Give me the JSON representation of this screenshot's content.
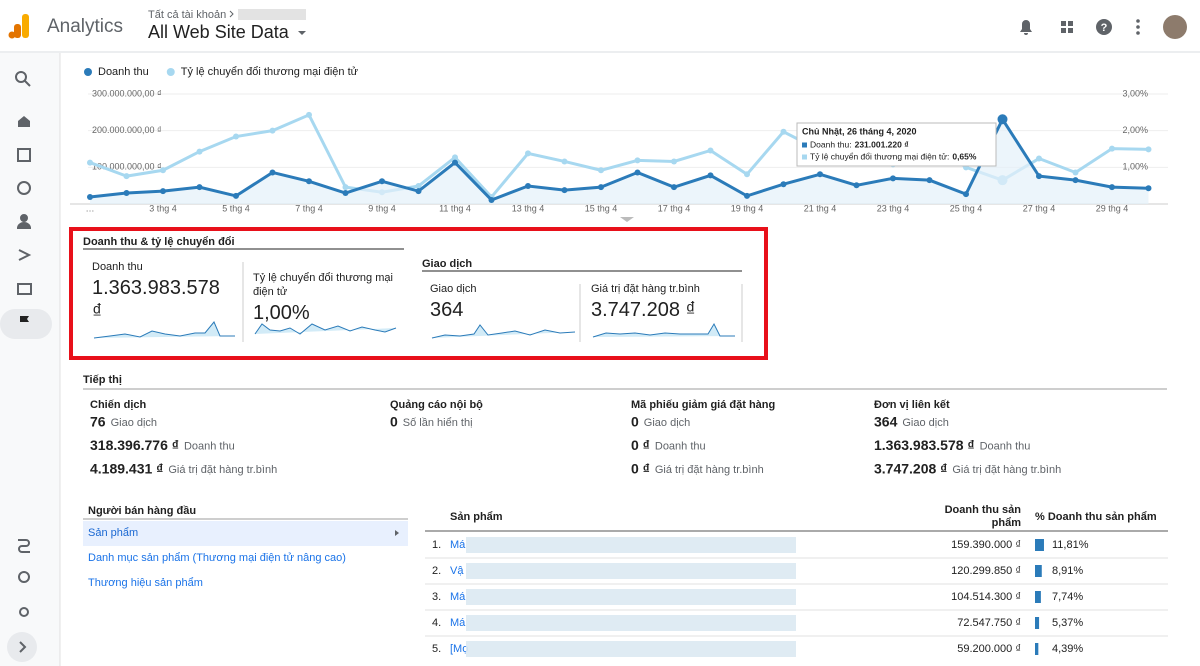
{
  "header": {
    "product": "Analytics",
    "breadcrumb": "Tất cả tài khoản",
    "view": "All Web Site Data"
  },
  "chart_data": {
    "type": "line",
    "categories": [
      "…",
      null,
      "3 thg 4",
      null,
      "5 thg 4",
      null,
      "7 thg 4",
      null,
      "9 thg 4",
      null,
      "11 thg 4",
      null,
      "13 thg 4",
      null,
      "15 thg 4",
      null,
      "17 thg 4",
      null,
      "19 thg 4",
      null,
      "21 thg 4",
      null,
      "23 thg 4",
      null,
      "25 thg 4",
      null,
      "27 thg 4",
      null,
      "29 thg 4",
      null
    ],
    "series": [
      {
        "name": "Doanh thu",
        "color": "#2b7bb9",
        "values": [
          19000000,
          30000000,
          35000000,
          46000000,
          22000000,
          86000000,
          62000000,
          30000000,
          62000000,
          35000000,
          113000000,
          11000000,
          49000000,
          38000000,
          46000000,
          86000000,
          46000000,
          78000000,
          22000000,
          54000000,
          81000000,
          51000000,
          70000000,
          65000000,
          27000000,
          231001220,
          76000000,
          65000000,
          46000000,
          43000000
        ]
      },
      {
        "name": "Tỷ lệ chuyển đổi thương mại điện tử",
        "color": "#a7d8f0",
        "axis": "y2",
        "values": [
          1.13,
          0.76,
          0.92,
          1.43,
          1.84,
          2.0,
          2.43,
          0.46,
          0.32,
          0.49,
          1.27,
          0.19,
          1.38,
          1.16,
          0.92,
          1.19,
          1.16,
          1.46,
          0.81,
          1.97,
          1.46,
          1.59,
          1.08,
          1.68,
          1.0,
          0.65,
          1.24,
          0.86,
          1.51,
          1.49
        ]
      }
    ],
    "ylim": [
      0,
      300000000
    ],
    "yticks": [
      {
        "value": 100000000,
        "label": "100.000.000,00 ₫"
      },
      {
        "value": 200000000,
        "label": "200.000.000,00 ₫"
      },
      {
        "value": 300000000,
        "label": "300.000.000,00 ₫"
      }
    ],
    "y2lim": [
      0,
      3
    ],
    "y2ticks": [
      {
        "value": 1,
        "label": "1,00%"
      },
      {
        "value": 2,
        "label": "2,00%"
      },
      {
        "value": 3,
        "label": "3,00%"
      }
    ],
    "grid": true,
    "tooltip": {
      "title": "Chủ Nhật, 26 tháng 4, 2020",
      "lines": [
        {
          "label": "Doanh thu:",
          "value": "231.001.220 ₫"
        },
        {
          "label": "Tỷ lệ chuyển đổi thương mại điện tử:",
          "value": "0,65%"
        }
      ]
    }
  },
  "kpis": {
    "groups": [
      {
        "title": "Doanh thu & tỷ lệ chuyển đổi",
        "items": [
          {
            "label": "Doanh thu",
            "value": "1.363.983.578 ₫"
          },
          {
            "label": "Tỷ lệ chuyển đổi thương mại điện tử",
            "value": "1,00%"
          }
        ]
      },
      {
        "title": "Giao dịch",
        "items": [
          {
            "label": "Giao dịch",
            "value": "364"
          },
          {
            "label": "Giá trị đặt hàng tr.bình",
            "value": "3.747.208 ₫"
          }
        ]
      }
    ]
  },
  "marketing": {
    "title": "Tiếp thị",
    "columns": [
      {
        "title": "Chiến dịch",
        "rows": [
          {
            "value": "76",
            "label": "Giao dịch"
          },
          {
            "value": "318.396.776 ₫",
            "label": "Doanh thu"
          },
          {
            "value": "4.189.431 ₫",
            "label": "Giá trị đặt hàng tr.bình"
          }
        ]
      },
      {
        "title": "Quảng cáo nội bộ",
        "rows": [
          {
            "value": "0",
            "label": "Số lần hiển thị"
          }
        ]
      },
      {
        "title": "Mã phiếu giảm giá đặt hàng",
        "rows": [
          {
            "value": "0",
            "label": "Giao dịch"
          },
          {
            "value": "0 ₫",
            "label": "Doanh thu"
          },
          {
            "value": "0 ₫",
            "label": "Giá trị đặt hàng tr.bình"
          }
        ]
      },
      {
        "title": "Đơn vị liên kết",
        "rows": [
          {
            "value": "364",
            "label": "Giao dịch"
          },
          {
            "value": "1.363.983.578 ₫",
            "label": "Doanh thu"
          },
          {
            "value": "3.747.208 ₫",
            "label": "Giá trị đặt hàng tr.bình"
          }
        ]
      }
    ]
  },
  "top_sellers": {
    "title": "Người bán hàng đầu",
    "options": [
      "Sản phẩm",
      "Danh mục sản phẩm (Thương mại điện tử nâng cao)",
      "Thương hiệu sản phẩm"
    ]
  },
  "products": {
    "headers": [
      "Sản phẩm",
      "Doanh thu sản phẩm",
      "% Doanh thu sản phẩm"
    ],
    "rows": [
      {
        "rank": "1.",
        "name": "Má",
        "revenue": "159.390.000 ₫",
        "share": {
          "value": 11.81,
          "label": "11,81%"
        }
      },
      {
        "rank": "2.",
        "name": "Vậ",
        "revenue": "120.299.850 ₫",
        "share": {
          "value": 8.91,
          "label": "8,91%"
        }
      },
      {
        "rank": "3.",
        "name": "Má",
        "revenue": "104.514.300 ₫",
        "share": {
          "value": 7.74,
          "label": "7,74%"
        }
      },
      {
        "rank": "4.",
        "name": "Má",
        "revenue": "72.547.750 ₫",
        "share": {
          "value": 5.37,
          "label": "5,37%"
        }
      },
      {
        "rank": "5.",
        "name": "[Mọ",
        "revenue": "59.200.000 ₫",
        "share": {
          "value": 4.39,
          "label": "4,39%"
        }
      }
    ]
  }
}
